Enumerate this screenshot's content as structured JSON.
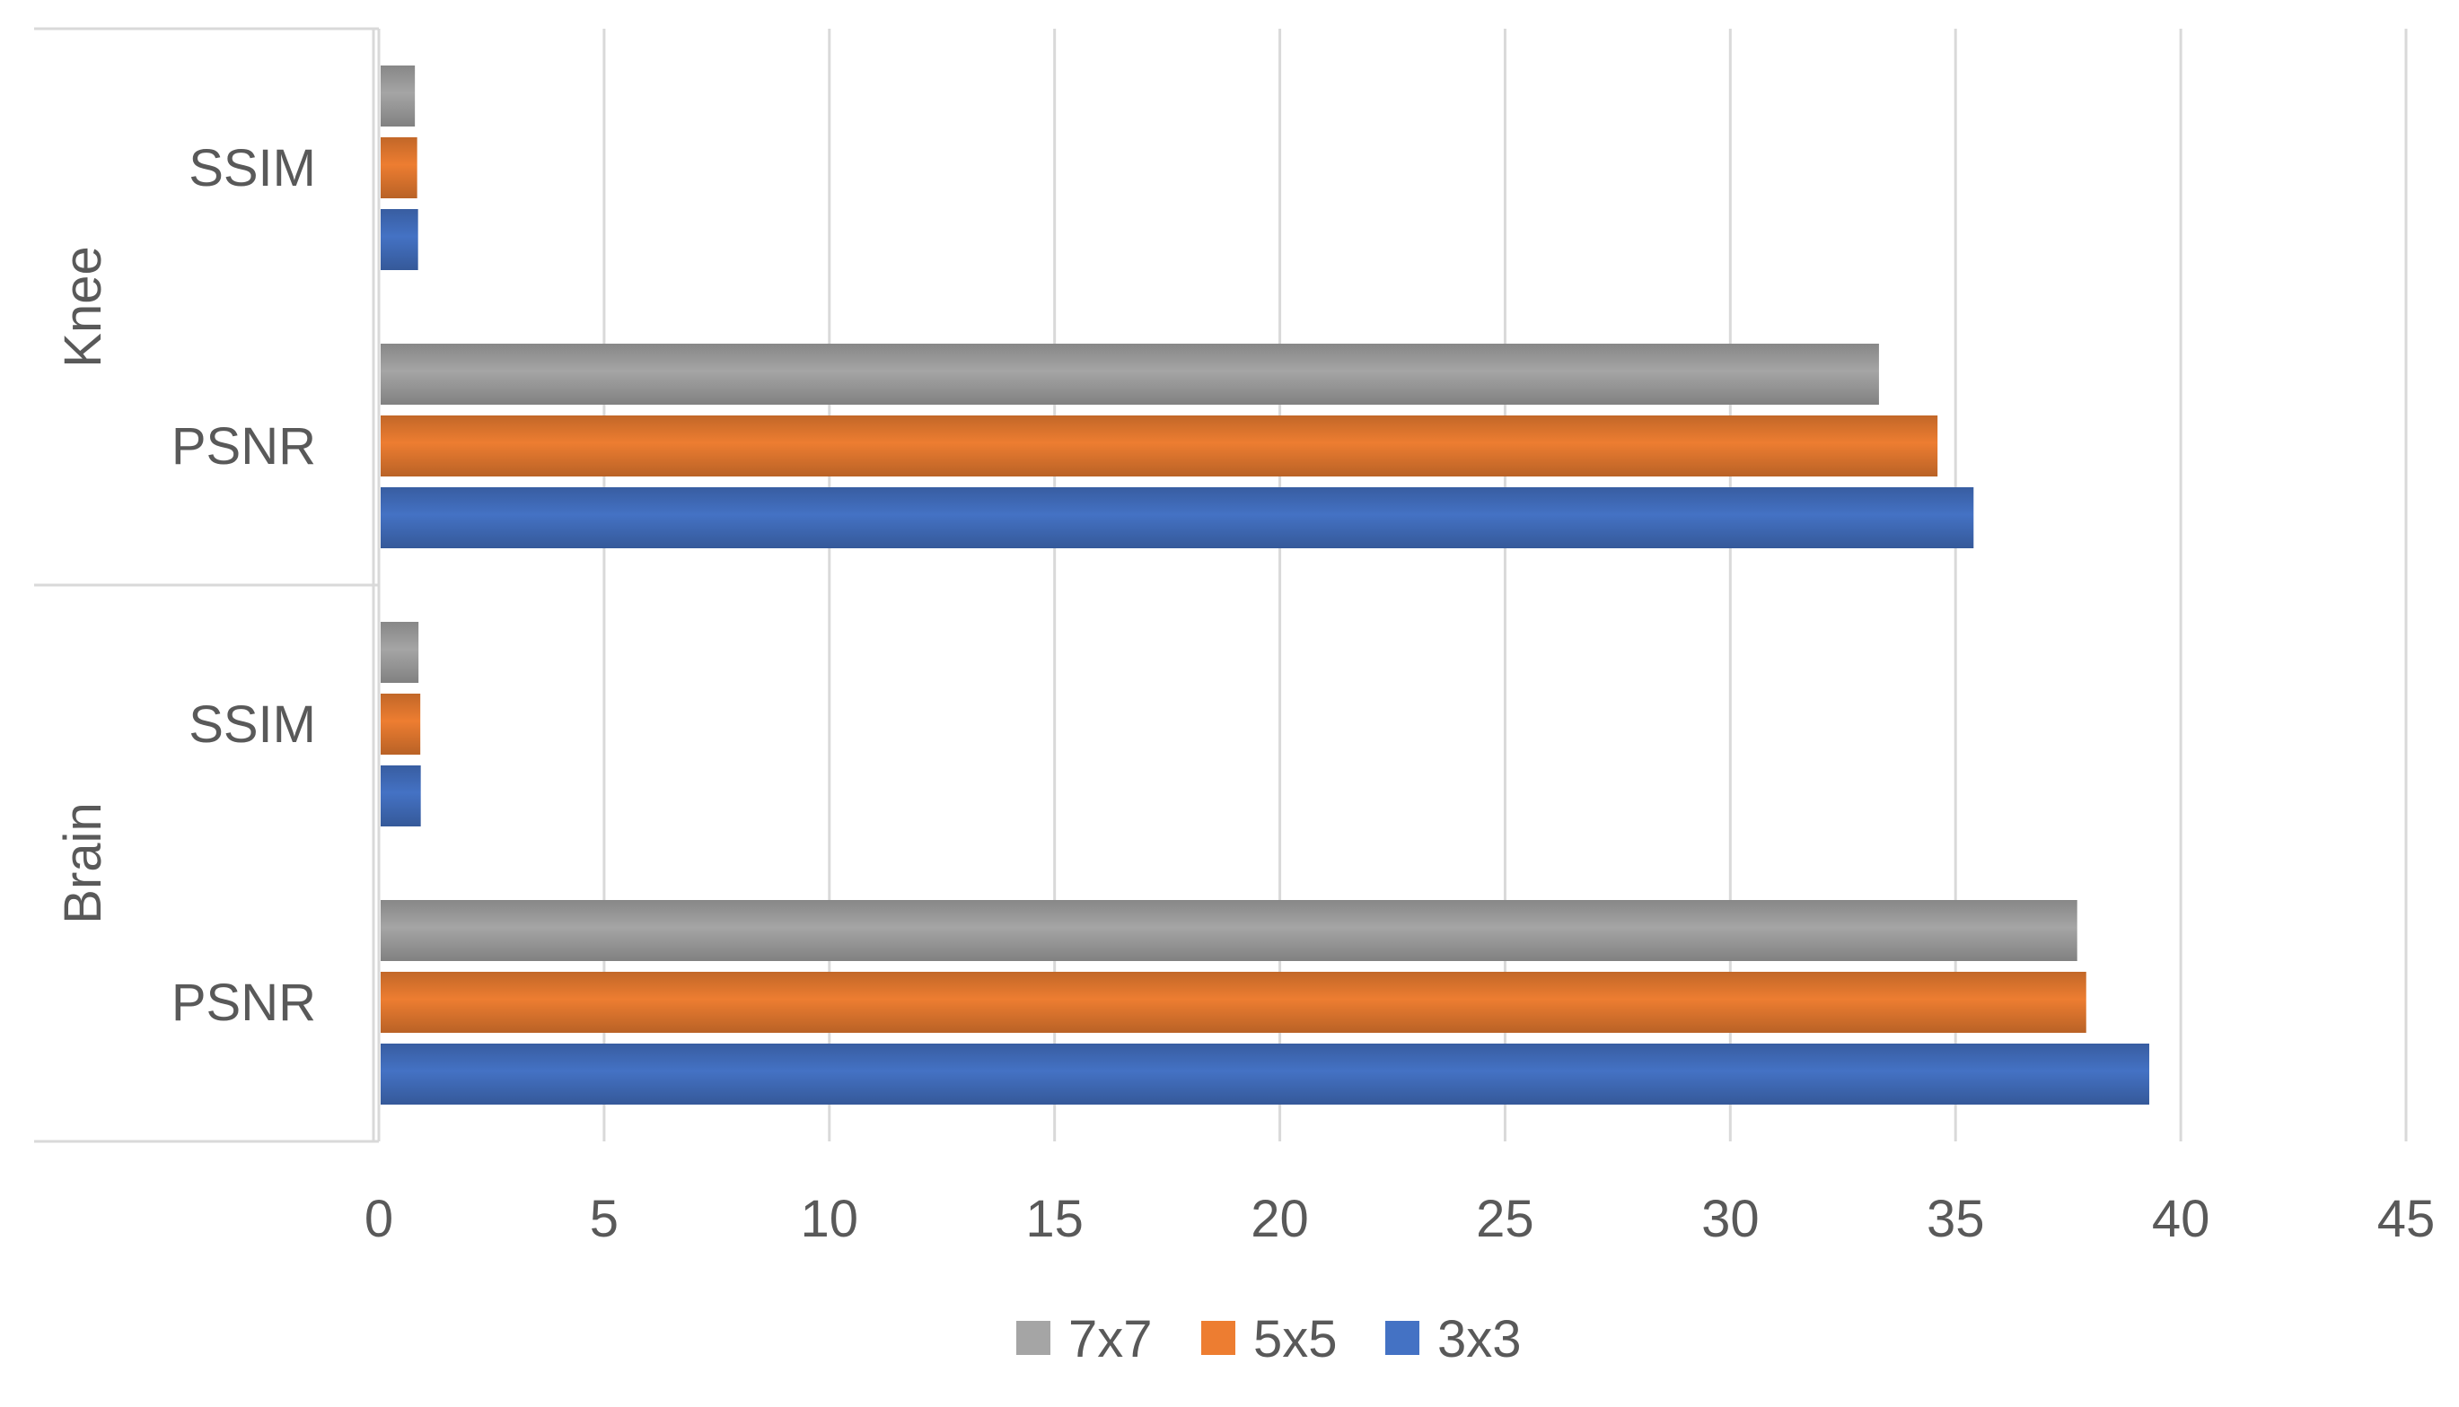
{
  "chart_data": {
    "type": "bar",
    "orientation": "horizontal",
    "groups": [
      {
        "name": "Knee",
        "categories": [
          {
            "name": "SSIM",
            "values": {
              "7x7": 0.8,
              "5x5": 0.85,
              "3x3": 0.87
            }
          },
          {
            "name": "PSNR",
            "values": {
              "7x7": 33.3,
              "5x5": 34.6,
              "3x3": 35.4
            }
          }
        ]
      },
      {
        "name": "Brain",
        "categories": [
          {
            "name": "SSIM",
            "values": {
              "7x7": 0.88,
              "5x5": 0.92,
              "3x3": 0.93
            }
          },
          {
            "name": "PSNR",
            "values": {
              "7x7": 37.7,
              "5x5": 37.9,
              "3x3": 39.3
            }
          }
        ]
      }
    ],
    "series": [
      {
        "name": "7x7",
        "color": "#a5a5a5"
      },
      {
        "name": "5x5",
        "color": "#ed7d31"
      },
      {
        "name": "3x3",
        "color": "#4472c4"
      }
    ],
    "xlim": [
      0,
      45
    ],
    "xticks": [
      "0",
      "5",
      "10",
      "15",
      "20",
      "25",
      "30",
      "35",
      "40",
      "45"
    ],
    "grid": true,
    "legend_position": "bottom"
  }
}
